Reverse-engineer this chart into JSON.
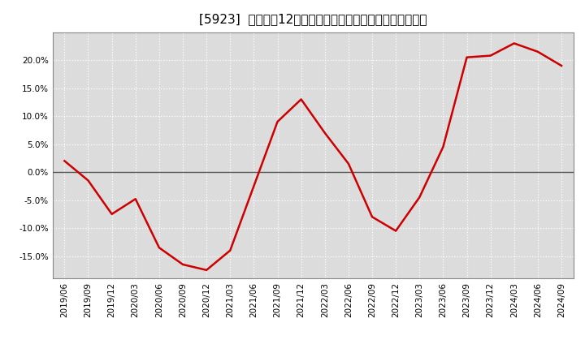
{
  "title": "[5923]  売上高の12か月移動合計の対前年同期増減率の推移",
  "x_labels": [
    "2019/06",
    "2019/09",
    "2019/12",
    "2020/03",
    "2020/06",
    "2020/09",
    "2020/12",
    "2021/03",
    "2021/06",
    "2021/09",
    "2021/12",
    "2022/03",
    "2022/06",
    "2022/09",
    "2022/12",
    "2023/03",
    "2023/06",
    "2023/09",
    "2023/12",
    "2024/03",
    "2024/06",
    "2024/09"
  ],
  "y_values": [
    2.0,
    -1.5,
    -7.5,
    -4.8,
    -13.5,
    -16.5,
    -17.5,
    -14.0,
    -2.5,
    9.0,
    13.0,
    7.0,
    1.5,
    -8.0,
    -10.5,
    -4.5,
    4.5,
    20.5,
    20.8,
    23.0,
    21.5,
    19.0
  ],
  "line_color": "#cc0000",
  "bg_color": "#ffffff",
  "plot_bg_color": "#dcdcdc",
  "grid_color": "#ffffff",
  "zero_line_color": "#555555",
  "ylim": [
    -19,
    25
  ],
  "yticks": [
    -15.0,
    -10.0,
    -5.0,
    0.0,
    5.0,
    10.0,
    15.0,
    20.0
  ],
  "title_fontsize": 11,
  "tick_fontsize": 7.5
}
